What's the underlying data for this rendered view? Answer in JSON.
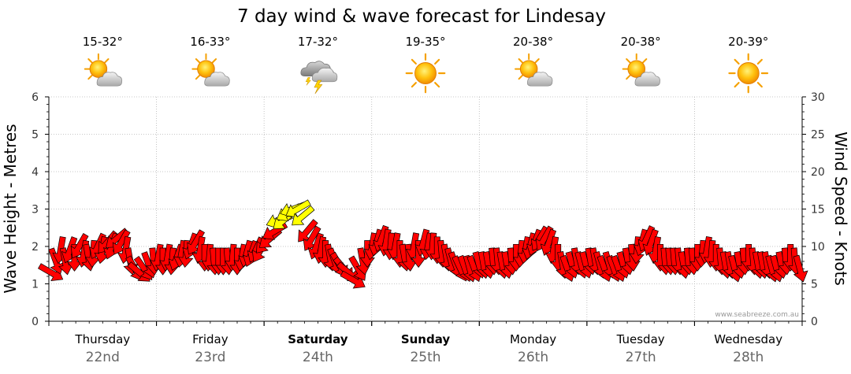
{
  "chart_data": {
    "type": "wind-wave-forecast",
    "title": "7 day wind & wave forecast for Lindesay",
    "y_left_label": "Wave Height - Metres",
    "y_right_label": "Wind Speed - Knots",
    "y_left_range": [
      0,
      6
    ],
    "y_left_ticks": [
      "0",
      "1",
      "2",
      "3",
      "4",
      "5",
      "6"
    ],
    "y_right_range": [
      0,
      30
    ],
    "y_right_ticks": [
      "0",
      "5",
      "10",
      "15",
      "20",
      "25",
      "30"
    ],
    "grid": true,
    "watermark": "www.seabreeze.com.au",
    "colors": {
      "normal": "#ff0000",
      "strong": "#ffff00",
      "outline": "#000000"
    },
    "days": [
      {
        "name": "Thursday",
        "date": "22nd",
        "bold": false,
        "temp": "15-32°",
        "icon": "partly-cloudy-icon"
      },
      {
        "name": "Friday",
        "date": "23rd",
        "bold": false,
        "temp": "16-33°",
        "icon": "partly-cloudy-icon"
      },
      {
        "name": "Saturday",
        "date": "24th",
        "bold": true,
        "temp": "17-32°",
        "icon": "thunderstorm-icon"
      },
      {
        "name": "Sunday",
        "date": "25th",
        "bold": true,
        "temp": "19-35°",
        "icon": "sunny-icon"
      },
      {
        "name": "Monday",
        "date": "26th",
        "bold": false,
        "temp": "20-38°",
        "icon": "partly-cloudy-icon"
      },
      {
        "name": "Tuesday",
        "date": "27th",
        "bold": false,
        "temp": "20-38°",
        "icon": "partly-cloudy-icon"
      },
      {
        "name": "Wednesday",
        "date": "28th",
        "bold": false,
        "temp": "20-39°",
        "icon": "sunny-icon"
      }
    ],
    "wind_knots": [
      6.5,
      8,
      9.5,
      8,
      9.5,
      8.5,
      10,
      9,
      8.5,
      9,
      10,
      9.5,
      10.5,
      10,
      11,
      10.5,
      9.5,
      8,
      7,
      6.5,
      7,
      7.5,
      8,
      8.5,
      8,
      8.5,
      8,
      8.5,
      9,
      9,
      10,
      10.5,
      9.5,
      8.5,
      8.5,
      8,
      8,
      8,
      8,
      8.5,
      8,
      8.5,
      9,
      9,
      9.5,
      9.5,
      10.5,
      11,
      12,
      13.5,
      13.5,
      14.5,
      15,
      15,
      14,
      12,
      11,
      10,
      9.5,
      9,
      8.5,
      8,
      7.5,
      7,
      6.5,
      5.5,
      7,
      8,
      9,
      10,
      10.5,
      11,
      10.5,
      10,
      10,
      9,
      8.5,
      8.5,
      10,
      9,
      10.5,
      10,
      10,
      9.5,
      9,
      8.5,
      8,
      7.5,
      7,
      7,
      7,
      7,
      7.5,
      7.5,
      7.5,
      8,
      8,
      7.5,
      7.5,
      8,
      8.5,
      9,
      9.5,
      10,
      10.5,
      11,
      11,
      10.5,
      9.5,
      8.5,
      7.5,
      7,
      7.5,
      8,
      7.5,
      7.5,
      8,
      8,
      7.5,
      7,
      7.5,
      7,
      7,
      7.5,
      8,
      8.5,
      9.5,
      10.5,
      11,
      10.5,
      9.5,
      8.5,
      8,
      8,
      8,
      8,
      7.5,
      8,
      8,
      8.5,
      9,
      9.5,
      9,
      8.5,
      8,
      7.5,
      7.5,
      7,
      7.5,
      8,
      8.5,
      8,
      7.5,
      7.5,
      7.5,
      7,
      7,
      7.5,
      8,
      8.5,
      8,
      7
    ],
    "wind_direction_deg": [
      30,
      70,
      100,
      80,
      110,
      90,
      120,
      100,
      80,
      95,
      115,
      100,
      130,
      110,
      140,
      120,
      100,
      80,
      60,
      40,
      55,
      70,
      85,
      100,
      90,
      100,
      95,
      110,
      100,
      95,
      110,
      120,
      100,
      90,
      95,
      85,
      90,
      90,
      85,
      95,
      90,
      100,
      105,
      110,
      115,
      120,
      130,
      140,
      150,
      160,
      140,
      150,
      160,
      150,
      140,
      130,
      120,
      110,
      100,
      90,
      80,
      70,
      60,
      50,
      40,
      30,
      60,
      80,
      90,
      100,
      105,
      110,
      100,
      95,
      100,
      90,
      80,
      85,
      100,
      90,
      105,
      100,
      95,
      90,
      85,
      80,
      75,
      70,
      65,
      70,
      75,
      70,
      75,
      80,
      80,
      85,
      85,
      80,
      80,
      85,
      90,
      95,
      100,
      105,
      110,
      120,
      120,
      110,
      100,
      90,
      80,
      70,
      75,
      80,
      75,
      75,
      80,
      80,
      75,
      70,
      75,
      70,
      70,
      75,
      80,
      85,
      95,
      105,
      115,
      110,
      100,
      90,
      85,
      85,
      85,
      85,
      80,
      85,
      85,
      90,
      95,
      100,
      95,
      90,
      85,
      80,
      80,
      75,
      80,
      85,
      90,
      85,
      80,
      80,
      80,
      75,
      75,
      80,
      85,
      90,
      85,
      75
    ],
    "strong_threshold_knots": 12.5
  }
}
